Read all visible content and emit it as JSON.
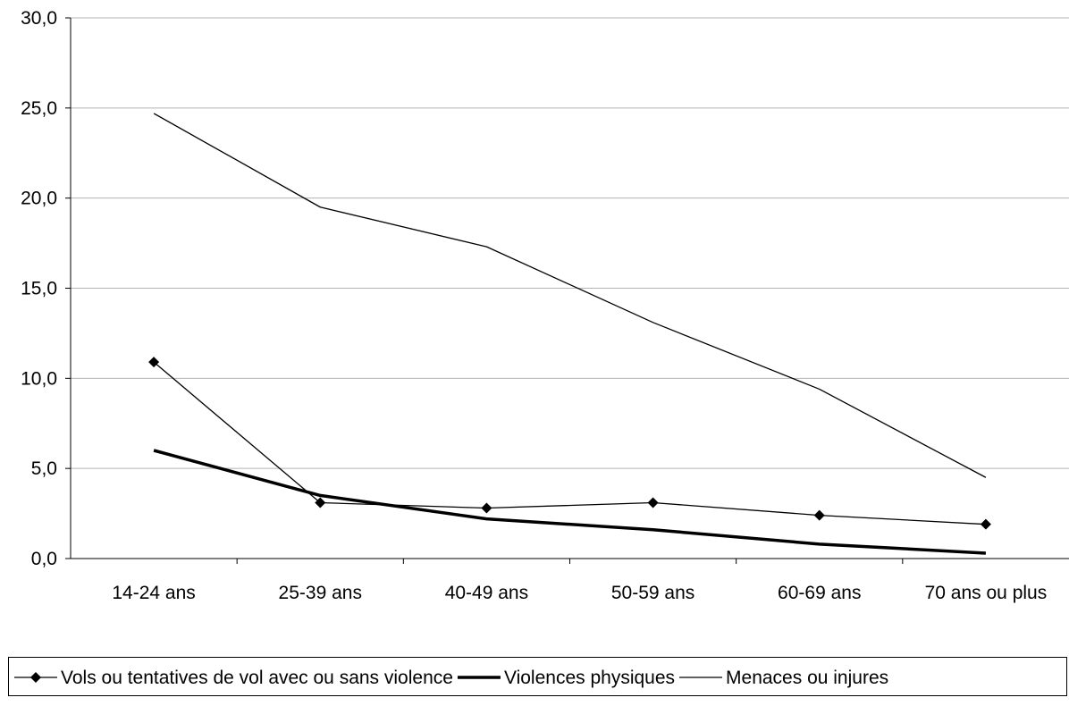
{
  "chart_data": {
    "type": "line",
    "categories": [
      "14-24 ans",
      "25-39 ans",
      "40-49 ans",
      "50-59 ans",
      "60-69 ans",
      "70 ans ou plus"
    ],
    "ylim": [
      0,
      30
    ],
    "y_ticks": [
      "0,0",
      "5,0",
      "10,0",
      "15,0",
      "20,0",
      "25,0",
      "30,0"
    ],
    "grid": "horizontal",
    "legend_position": "bottom",
    "series": [
      {
        "name": "Vols ou tentatives de vol avec ou sans violence",
        "values": [
          10.9,
          3.1,
          2.8,
          3.1,
          2.4,
          1.9
        ],
        "style": "thin-diamond",
        "color": "#000000"
      },
      {
        "name": "Violences physiques",
        "values": [
          6.0,
          3.5,
          2.2,
          1.6,
          0.8,
          0.3
        ],
        "style": "thick",
        "color": "#000000"
      },
      {
        "name": "Menaces ou injures",
        "values": [
          24.7,
          19.5,
          17.3,
          13.1,
          9.4,
          4.5
        ],
        "style": "thin",
        "color": "#000000"
      }
    ]
  }
}
